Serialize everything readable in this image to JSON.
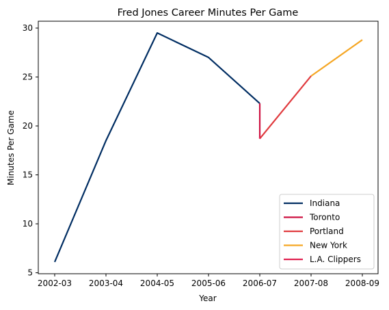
{
  "chart_data": {
    "type": "line",
    "title": "Fred Jones  Career Minutes Per Game",
    "xlabel": "Year",
    "ylabel": "Minutes Per Game",
    "categories": [
      "2002-03",
      "2003-04",
      "2004-05",
      "2005-06",
      "2006-07",
      "2007-08",
      "2008-09"
    ],
    "ylim": [
      4.9,
      30.7
    ],
    "yticks": [
      5,
      10,
      15,
      20,
      25,
      30
    ],
    "grid": false,
    "legend_position": "lower-right",
    "series": [
      {
        "name": "Indiana",
        "color": "#002d62",
        "points": [
          {
            "x": "2002-03",
            "y": 6.1
          },
          {
            "x": "2003-04",
            "y": 18.5
          },
          {
            "x": "2004-05",
            "y": 29.5
          },
          {
            "x": "2005-06",
            "y": 27.0
          },
          {
            "x": "2006-07",
            "y": 22.3
          }
        ]
      },
      {
        "name": "Toronto",
        "color": "#ce1141",
        "points": [
          {
            "x": "2006-07",
            "y": 22.3
          },
          {
            "x": "2006-07",
            "y": 18.7
          }
        ]
      },
      {
        "name": "Portland",
        "color": "#e03a3e",
        "points": [
          {
            "x": "2006-07",
            "y": 18.7
          },
          {
            "x": "2007-08",
            "y": 25.1
          }
        ]
      },
      {
        "name": "New York",
        "color": "#f5a623",
        "points": [
          {
            "x": "2007-08",
            "y": 25.1
          },
          {
            "x": "2008-09",
            "y": 28.8
          }
        ]
      },
      {
        "name": "L.A. Clippers",
        "color": "#e0204f",
        "points": [
          {
            "x": "2006-07",
            "y": 18.7
          },
          {
            "x": "2006-07",
            "y": 18.9
          }
        ]
      }
    ]
  }
}
